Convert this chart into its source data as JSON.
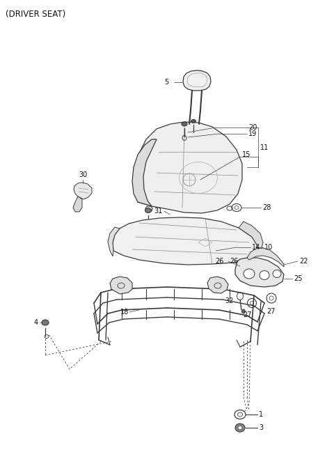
{
  "title": "(DRIVER SEAT)",
  "bg": "#ffffff",
  "fig_w": 4.8,
  "fig_h": 6.56,
  "dpi": 100,
  "line_color": "#3a3a3a",
  "label_fs": 7.0,
  "title_fs": 8.5
}
